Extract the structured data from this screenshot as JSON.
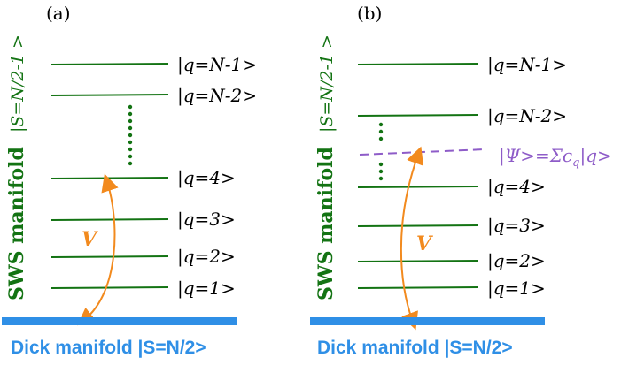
{
  "colors": {
    "level": "#137313",
    "ground": "#2f8fe6",
    "ground_text": "#2f8fe6",
    "arrow": "#f28a1e",
    "superposition": "#8e5cc8",
    "text": "#000000",
    "manifold_text": "#137313"
  },
  "panel_a": {
    "label": "(a)",
    "spin_label": "|S=N/2-1 >",
    "manifold_label": "SWS manifold",
    "ground_label": "Dick manifold |S=N/2>",
    "arrow_label": "V",
    "levels": [
      {
        "label": "|q=N-1>"
      },
      {
        "label": "|q=N-2>"
      },
      {
        "label": "|q=4>"
      },
      {
        "label": "|q=3>"
      },
      {
        "label": "|q=2>"
      },
      {
        "label": "|q=1>"
      }
    ]
  },
  "panel_b": {
    "label": "(b)",
    "spin_label": "|S=N/2-1 >",
    "manifold_label": "SWS manifold",
    "ground_label": "Dick manifold |S=N/2>",
    "arrow_label": "V",
    "superposition_label": "|Ψ>=Σc",
    "superposition_sub": "q",
    "superposition_tail": "|q>",
    "levels": [
      {
        "label": "|q=N-1>"
      },
      {
        "label": "|q=N-2>"
      },
      {
        "label": "|q=4>"
      },
      {
        "label": "|q=3>"
      },
      {
        "label": "|q=2>"
      },
      {
        "label": "|q=1>"
      }
    ]
  }
}
